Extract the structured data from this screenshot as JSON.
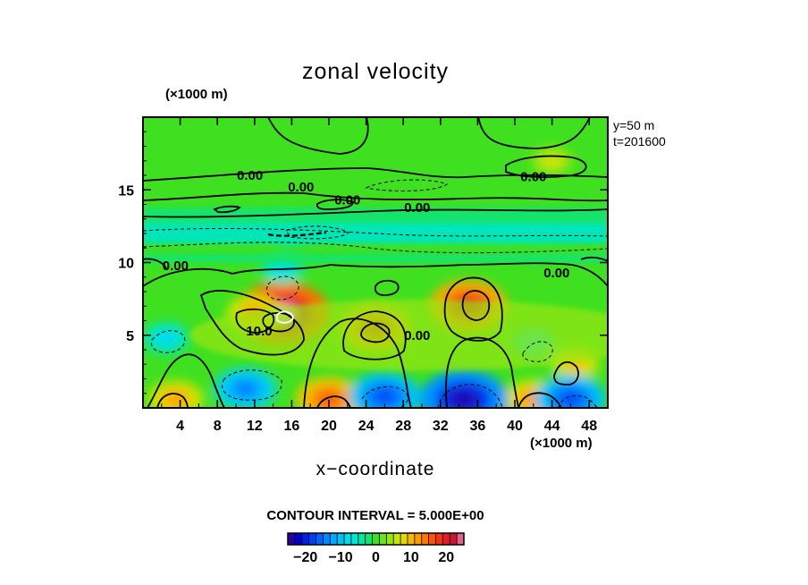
{
  "chart_data": {
    "type": "heatmap",
    "title": "zonal velocity",
    "xlabel": "x−coordinate",
    "x_unit": "(×1000 m)",
    "y_unit": "(×1000 m)",
    "xlim": [
      0,
      50
    ],
    "ylim": [
      0,
      20
    ],
    "x_ticks": [
      4,
      8,
      12,
      16,
      20,
      24,
      28,
      32,
      36,
      40,
      44,
      48
    ],
    "y_ticks": [
      5,
      10,
      15
    ],
    "info_lines": [
      "y=50  m",
      "t=201600"
    ],
    "contour_interval_text": "CONTOUR INTERVAL = 5.000E+00",
    "contour_labels": [
      "0.00",
      "0.00",
      "0.00",
      "0.00",
      "0.00",
      "0.00",
      "0.00",
      "10.0",
      "0.00"
    ],
    "colorbar": {
      "min": -25,
      "max": 25,
      "tick_labels": [
        "−20",
        "−10",
        "0",
        "10",
        "20"
      ],
      "tick_values": [
        -20,
        -10,
        0,
        10,
        20
      ]
    },
    "features": [
      {
        "x": 15,
        "y": 6.5,
        "value": 26
      },
      {
        "x": 35,
        "y": 7.0,
        "value": 20
      },
      {
        "x": 25,
        "y": 5.5,
        "value": 17
      },
      {
        "x": 12,
        "y": 6.5,
        "value": 12
      },
      {
        "x": 20,
        "y": 0.6,
        "value": 16
      },
      {
        "x": 42,
        "y": 0.6,
        "value": 13
      },
      {
        "x": 3.5,
        "y": 0.6,
        "value": 12
      },
      {
        "x": 46.5,
        "y": 3.0,
        "value": 10
      },
      {
        "x": 44,
        "y": 17,
        "value": 7
      },
      {
        "x": 34.5,
        "y": 0.6,
        "value": -24
      },
      {
        "x": 26,
        "y": 0.8,
        "value": -18
      },
      {
        "x": 46,
        "y": 0.6,
        "value": -18
      },
      {
        "x": 11,
        "y": 1.3,
        "value": -15
      },
      {
        "x": 2.5,
        "y": 4.8,
        "value": -9
      },
      {
        "x": 15,
        "y": 9.5,
        "value": -8
      },
      {
        "x": 42,
        "y": 4.5,
        "value": -8
      },
      {
        "x": 16,
        "y": 12.2,
        "value": -7
      }
    ]
  }
}
